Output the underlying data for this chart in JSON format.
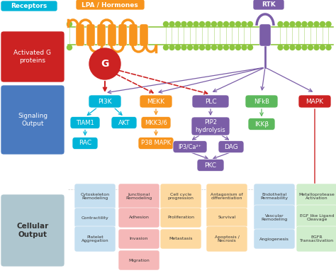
{
  "bg_color": "#f0f0f0",
  "membrane_color": "#8dc63f",
  "receptor_color": "#f7941d",
  "rtk_color": "#7b5ea7",
  "cyan_color": "#00b4d8",
  "red_color": "#cc2222",
  "blue_color": "#4a7abf",
  "light_blue_color": "#aec6cf",
  "orange_color": "#f7941d",
  "purple_color": "#7b5ea7",
  "green_color": "#5cb85c",
  "arrow_gray": "#555577",
  "left_panel": {
    "receptors_label": "Receptors",
    "receptors_color": "#00b4d8",
    "activated_label": "Activated G\nproteins",
    "activated_color": "#cc2222",
    "signaling_label": "Signaling\nOutput",
    "signaling_color": "#4a7abf",
    "cellular_label": "Cellular\nOutput",
    "cellular_color": "#aec6cf"
  },
  "top_labels": {
    "lpa_label": "LPA / Hormones",
    "lpa_color": "#f7941d",
    "rtk_label": "RTK",
    "rtk_color": "#7b5ea7"
  },
  "pathway_nodes": {
    "PI3K": {
      "label": "PI3K",
      "color": "#00b4d8"
    },
    "MEKK": {
      "label": "MEKK",
      "color": "#f7941d"
    },
    "PLC": {
      "label": "PLC",
      "color": "#7b5ea7"
    },
    "NFkB": {
      "label": "NFkB",
      "color": "#5cb85c"
    },
    "MAPK": {
      "label": "MAPK",
      "color": "#cc2222"
    },
    "TIAM1": {
      "label": "TIAM1",
      "color": "#00b4d8"
    },
    "AKT": {
      "label": "AKT",
      "color": "#00b4d8"
    },
    "MKK36": {
      "label": "MKK3/6",
      "color": "#f7941d"
    },
    "PIP2": {
      "label": "PIP2\nhydrolysis",
      "color": "#7b5ea7"
    },
    "IKKb": {
      "label": "IKKβ",
      "color": "#5cb85c"
    },
    "RAC": {
      "label": "RAC",
      "color": "#00b4d8"
    },
    "P38MAPK": {
      "label": "P38 MAPK",
      "color": "#f7941d"
    },
    "IP3Ca": {
      "label": "IP3/Ca²⁺",
      "color": "#7b5ea7"
    },
    "DAG": {
      "label": "DAG",
      "color": "#7b5ea7"
    },
    "PKC": {
      "label": "PKC",
      "color": "#7b5ea7"
    }
  },
  "output_cols": [
    {
      "color": "#c5dff0",
      "tc": "#333333",
      "items": [
        "Cytoskeleton\nRemodeling",
        "Contractility",
        "Platelet\nAggregation"
      ]
    },
    {
      "color": "#f5b8b8",
      "tc": "#333333",
      "items": [
        "Junctional\nRemodeling",
        "Adhesion",
        "Invasion",
        "Migration"
      ]
    },
    {
      "color": "#fdd9a0",
      "tc": "#333333",
      "items": [
        "Cell cycle\nprogression",
        "Proliferation",
        "Metastasis"
      ]
    },
    {
      "color": "#fdd9a0",
      "tc": "#333333",
      "items": [
        "Antagonism of\ndifferentiation",
        "Survival",
        "Apoptosis /\nNecrosis"
      ]
    },
    {
      "color": "#c5dff0",
      "tc": "#333333",
      "items": [
        "Endothelial\nPermeability",
        "Vascular\nRemodeling",
        "Angiogenesis"
      ]
    },
    {
      "color": "#d0edcc",
      "tc": "#333333",
      "items": [
        "Metalloprotease\nActivation",
        "EGF like Ligand\nCleavage",
        "EGFR\nTransactivation"
      ]
    }
  ]
}
